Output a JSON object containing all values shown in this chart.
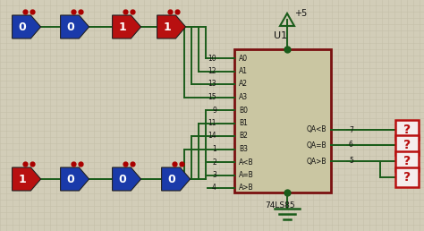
{
  "bg_color": "#d2cdb8",
  "grid_color": "#c4bfa8",
  "wire_color": "#1a5c1a",
  "chip_border_color": "#7a1010",
  "chip_fill_color": "#cac6a2",
  "red_fill": "#b81010",
  "blue_fill": "#1a3aaa",
  "question_border": "#b81010",
  "question_fill": "#f5eded",
  "question_text": "#b81010",
  "dot_color": "#aa0000",
  "chip_label": "U1",
  "chip_sublabel": "74LS85",
  "left_pins": [
    "A0",
    "A1",
    "A2",
    "A3",
    "B0",
    "B1",
    "B2",
    "B3",
    "A<B",
    "A=B",
    "A>B"
  ],
  "left_pin_nums": [
    "10",
    "12",
    "13",
    "15",
    "9",
    "11",
    "14",
    "1",
    "2",
    "3",
    "4"
  ],
  "right_pins": [
    "QA<B",
    "QA=B",
    "QA>B"
  ],
  "right_pin_nums": [
    "7",
    "6",
    "5"
  ],
  "top_row": [
    {
      "val": "0",
      "color": "blue"
    },
    {
      "val": "0",
      "color": "blue"
    },
    {
      "val": "1",
      "color": "red"
    },
    {
      "val": "1",
      "color": "red"
    }
  ],
  "bot_row": [
    {
      "val": "1",
      "color": "red"
    },
    {
      "val": "0",
      "color": "blue"
    },
    {
      "val": "0",
      "color": "blue"
    },
    {
      "val": "0",
      "color": "blue"
    }
  ],
  "outputs": [
    "?",
    "?",
    "?"
  ]
}
